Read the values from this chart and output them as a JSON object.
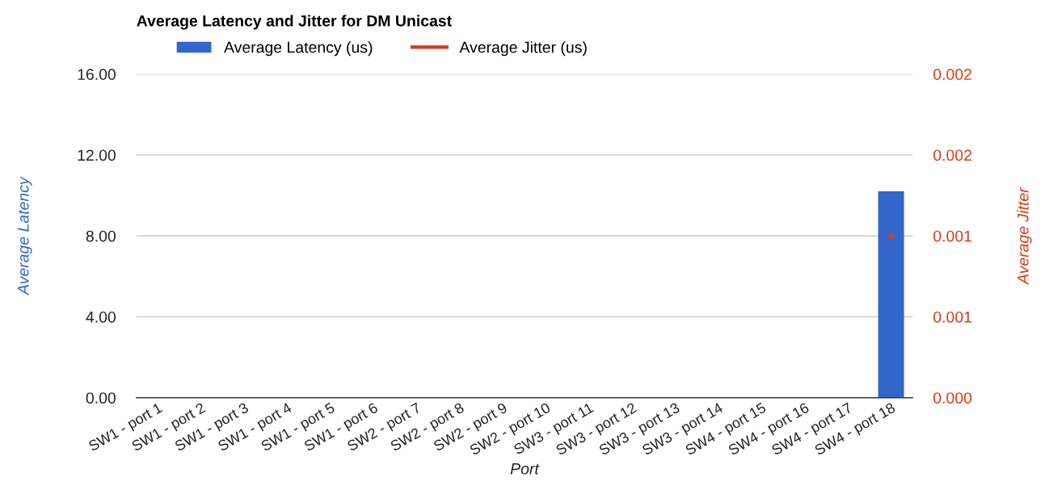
{
  "chart_data": {
    "type": "bar",
    "title": "Average Latency and Jitter for DM Unicast",
    "categories": [
      "SW1 - port 1",
      "SW1 - port 2",
      "SW1 - port 3",
      "SW1 - port 4",
      "SW1 - port 5",
      "SW1 - port 6",
      "SW2 - port 7",
      "SW2 - port 8",
      "SW2 - port 9",
      "SW2 - port 10",
      "SW3 - port 11",
      "SW3 - port 12",
      "SW3 - port 13",
      "SW3 - port 14",
      "SW4 - port 15",
      "SW4 - port 16",
      "SW4 - port 17",
      "SW4 - port 18"
    ],
    "series": [
      {
        "name": "Average Latency (us)",
        "color": "#3366cc",
        "values": [
          0,
          0,
          0,
          0,
          0,
          0,
          0,
          0,
          0,
          0,
          0,
          0,
          0,
          0,
          0,
          0,
          0,
          10.2
        ]
      },
      {
        "name": "Average Jitter (us)",
        "type": "line",
        "axis": "y2",
        "color": "#dc3912",
        "marker": "circle",
        "values": [
          null,
          null,
          null,
          null,
          null,
          null,
          null,
          null,
          null,
          null,
          null,
          null,
          null,
          null,
          null,
          null,
          null,
          0.001
        ]
      }
    ],
    "xlabel": "Port",
    "ylabel": "Average Latency",
    "y2label": "Average Jitter",
    "ylim": [
      0,
      16
    ],
    "yticks": [
      {
        "value": 0,
        "label": "0.00"
      },
      {
        "value": 4,
        "label": "4.00"
      },
      {
        "value": 8,
        "label": "8.00"
      },
      {
        "value": 12,
        "label": "12.00"
      },
      {
        "value": 16,
        "label": "16.00"
      }
    ],
    "y2lim": [
      0,
      0.002
    ],
    "y2ticks": [
      {
        "value": 0,
        "label": "0.000"
      },
      {
        "value": 0.0005,
        "label": "0.001"
      },
      {
        "value": 0.001,
        "label": "0.001"
      },
      {
        "value": 0.0015,
        "label": "0.002"
      },
      {
        "value": 0.002,
        "label": "0.002"
      }
    ],
    "grid": "y",
    "legend": "top left"
  }
}
